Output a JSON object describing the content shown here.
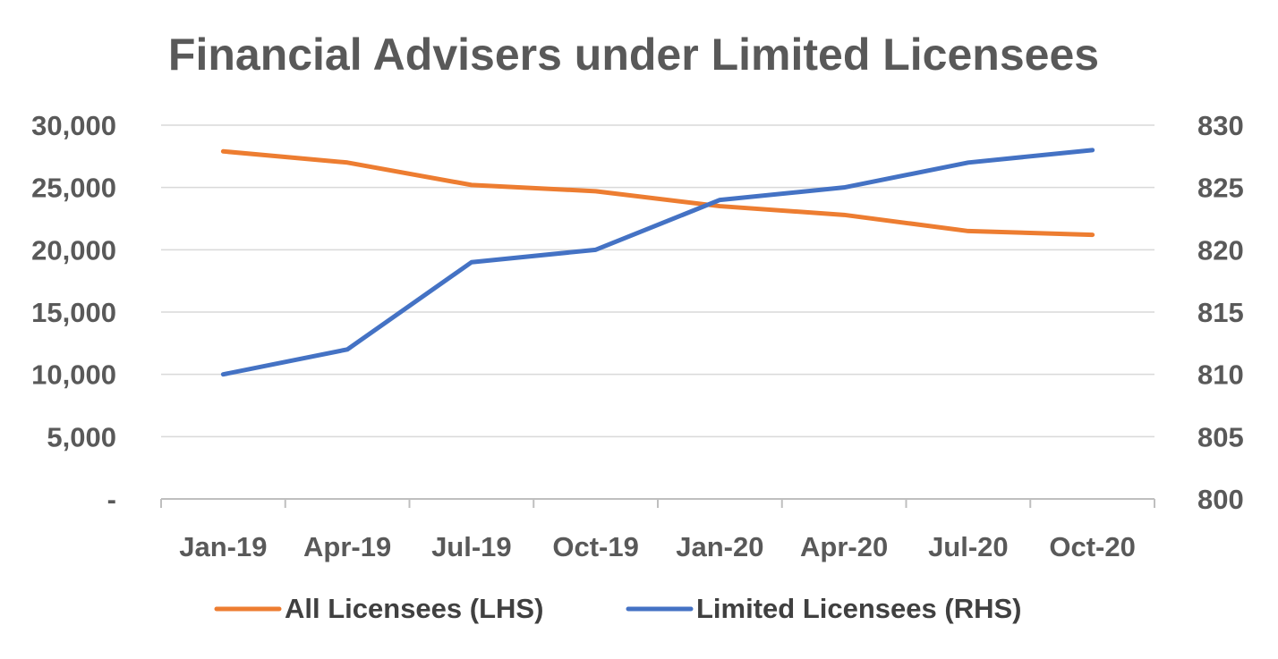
{
  "chart_data": {
    "type": "line",
    "title": "Financial Advisers under Limited Licensees",
    "categories": [
      "Jan-19",
      "Apr-19",
      "Jul-19",
      "Oct-19",
      "Jan-20",
      "Apr-20",
      "Jul-20",
      "Oct-20"
    ],
    "y_left": {
      "range": [
        0,
        30000
      ],
      "ticks": [
        0,
        5000,
        10000,
        15000,
        20000,
        25000,
        30000
      ],
      "tick_labels": [
        "-",
        "5,000",
        "10,000",
        "15,000",
        "20,000",
        "25,000",
        "30,000"
      ]
    },
    "y_right": {
      "range": [
        800,
        830
      ],
      "ticks": [
        800,
        805,
        810,
        815,
        820,
        825,
        830
      ],
      "tick_labels": [
        "800",
        "805",
        "810",
        "815",
        "820",
        "825",
        "830"
      ]
    },
    "series": [
      {
        "name": "All Licensees (LHS)",
        "axis": "left",
        "color": "#ED7D31",
        "values": [
          27900,
          27000,
          25200,
          24700,
          23500,
          22800,
          21500,
          21200
        ]
      },
      {
        "name": "Limited Licensees (RHS)",
        "axis": "right",
        "color": "#4472C4",
        "values": [
          810,
          812,
          819,
          820,
          824,
          825,
          827,
          828
        ]
      }
    ],
    "grid": true,
    "legend": "bottom"
  }
}
